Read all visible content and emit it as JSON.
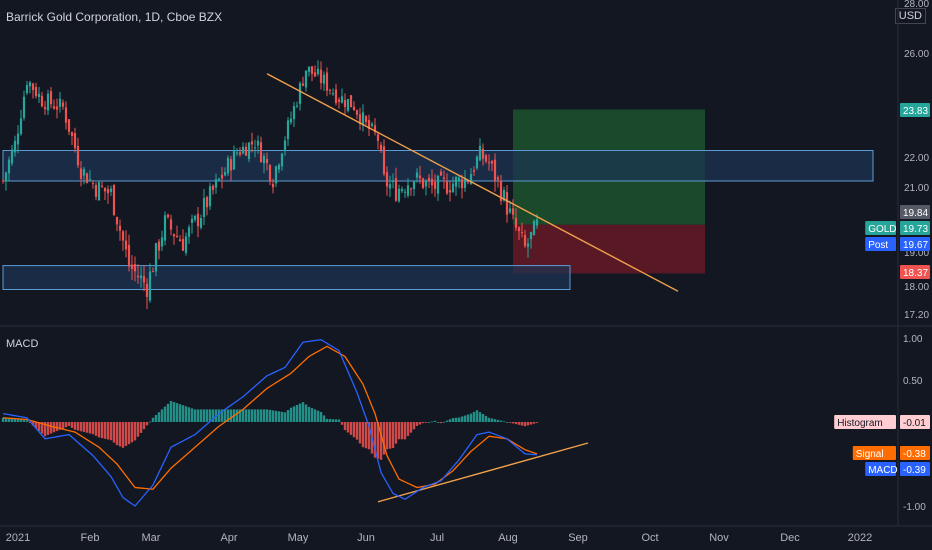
{
  "header": {
    "title": "Barrick Gold Corporation, 1D, Cboe BZX",
    "currency": "USD"
  },
  "colors": {
    "background": "#131722",
    "up": "#26a69a",
    "down": "#ef5350",
    "trendline": "#f0a04b",
    "zone_fill": "#1c3554",
    "zone_stroke": "#5b9bd5",
    "target_zone": "#1e5b2f",
    "stop_zone": "#6b1a26",
    "macd_line": "#2962ff",
    "signal_line": "#ff6d00",
    "hist_up": "#26a69a",
    "hist_down": "#ef5350"
  },
  "price_axis": {
    "ticks": [
      "28.00",
      "26.00",
      "22.00",
      "21.00",
      "19.00",
      "18.00",
      "17.20"
    ],
    "labels": [
      {
        "text": "23.83",
        "color": "#26a69a",
        "value": 23.83
      },
      {
        "text": "19.84",
        "color": "#555a66",
        "value": 19.84
      },
      {
        "name": "GOLD",
        "text": "19.73",
        "color": "#26a69a",
        "value": 19.73
      },
      {
        "name": "Post",
        "text": "19.67",
        "color": "#2962ff",
        "value": 19.67
      },
      {
        "text": "18.37",
        "color": "#ef5350",
        "value": 18.37
      }
    ]
  },
  "macd_panel": {
    "label": "MACD",
    "ticks": [
      "1.00",
      "0.50",
      "-1.00"
    ],
    "labels": [
      {
        "name": "Histogram",
        "text": "-0.01",
        "color": "#ffcdd2",
        "value": -0.01
      },
      {
        "name": "Signal",
        "text": "-0.38",
        "color": "#ff6d00",
        "value": -0.38
      },
      {
        "name": "MACD",
        "text": "-0.39",
        "color": "#2962ff",
        "value": -0.39
      }
    ]
  },
  "time_axis": [
    "2021",
    "Feb",
    "Mar",
    "Apr",
    "May",
    "Jun",
    "Jul",
    "Aug",
    "Sep",
    "Oct",
    "Nov",
    "Dec",
    "2022"
  ],
  "chart_data": {
    "type": "candlestick",
    "title": "Barrick Gold Corporation, 1D, Cboe BZX",
    "x_start": "2021-01-04",
    "close_path": [
      [
        0,
        21.2
      ],
      [
        4,
        22.5
      ],
      [
        8,
        25.0
      ],
      [
        13,
        24.2
      ],
      [
        20,
        23.9
      ],
      [
        26,
        21.6
      ],
      [
        31,
        21.0
      ],
      [
        36,
        20.8
      ],
      [
        42,
        18.6
      ],
      [
        48,
        18.0
      ],
      [
        54,
        19.9
      ],
      [
        60,
        19.3
      ],
      [
        66,
        20.2
      ],
      [
        72,
        21.2
      ],
      [
        78,
        22.2
      ],
      [
        84,
        22.6
      ],
      [
        90,
        21.3
      ],
      [
        96,
        23.5
      ],
      [
        101,
        25.4
      ],
      [
        107,
        24.9
      ],
      [
        112,
        24.3
      ],
      [
        117,
        24.0
      ],
      [
        121,
        23.2
      ],
      [
        125,
        22.7
      ],
      [
        127,
        21.2
      ],
      [
        131,
        20.9
      ],
      [
        137,
        21.3
      ],
      [
        143,
        21.0
      ],
      [
        149,
        21.1
      ],
      [
        155,
        21.3
      ],
      [
        159,
        22.1
      ],
      [
        162,
        21.8
      ],
      [
        166,
        20.9
      ],
      [
        170,
        19.9
      ],
      [
        174,
        19.1
      ],
      [
        178,
        19.8
      ]
    ],
    "trendlines": [
      {
        "from": [
          88,
          25.2
        ],
        "to": [
          225,
          17.85
        ]
      },
      {
        "panel": "macd",
        "from": [
          125,
          -0.95
        ],
        "to": [
          195,
          -0.25
        ]
      }
    ],
    "zones": [
      {
        "from_x": 0,
        "to_x": 290,
        "low": 21.2,
        "high": 22.25
      },
      {
        "from_x": 0,
        "to_x": 189,
        "low": 17.9,
        "high": 18.6
      },
      {
        "from_x": 0,
        "to_x": 290,
        "low": 21.2,
        "high": 21.2,
        "line_only": true
      }
    ],
    "position": {
      "from_x": 170,
      "to_x": 234,
      "entry": 19.84,
      "target": 23.83,
      "stop": 18.37
    },
    "macd_path": [
      [
        0,
        0.1
      ],
      [
        8,
        0.05
      ],
      [
        14,
        -0.2
      ],
      [
        22,
        -0.15
      ],
      [
        30,
        -0.4
      ],
      [
        36,
        -0.65
      ],
      [
        40,
        -0.9
      ],
      [
        44,
        -1.0
      ],
      [
        50,
        -0.75
      ],
      [
        56,
        -0.3
      ],
      [
        64,
        -0.15
      ],
      [
        72,
        0.1
      ],
      [
        80,
        0.3
      ],
      [
        88,
        0.55
      ],
      [
        94,
        0.65
      ],
      [
        100,
        0.95
      ],
      [
        106,
        0.98
      ],
      [
        112,
        0.85
      ],
      [
        118,
        0.35
      ],
      [
        122,
        -0.05
      ],
      [
        126,
        -0.6
      ],
      [
        130,
        -0.85
      ],
      [
        134,
        -0.92
      ],
      [
        140,
        -0.78
      ],
      [
        146,
        -0.7
      ],
      [
        152,
        -0.45
      ],
      [
        158,
        -0.15
      ],
      [
        162,
        -0.12
      ],
      [
        168,
        -0.2
      ],
      [
        174,
        -0.38
      ],
      [
        178,
        -0.39
      ]
    ],
    "signal_path": [
      [
        0,
        0.05
      ],
      [
        8,
        0.03
      ],
      [
        16,
        -0.05
      ],
      [
        24,
        -0.12
      ],
      [
        32,
        -0.3
      ],
      [
        38,
        -0.5
      ],
      [
        44,
        -0.78
      ],
      [
        50,
        -0.8
      ],
      [
        56,
        -0.55
      ],
      [
        64,
        -0.3
      ],
      [
        72,
        -0.05
      ],
      [
        80,
        0.15
      ],
      [
        88,
        0.4
      ],
      [
        96,
        0.58
      ],
      [
        102,
        0.78
      ],
      [
        108,
        0.9
      ],
      [
        114,
        0.78
      ],
      [
        120,
        0.45
      ],
      [
        124,
        0.1
      ],
      [
        128,
        -0.4
      ],
      [
        132,
        -0.68
      ],
      [
        138,
        -0.78
      ],
      [
        144,
        -0.74
      ],
      [
        150,
        -0.58
      ],
      [
        156,
        -0.35
      ],
      [
        162,
        -0.17
      ],
      [
        168,
        -0.2
      ],
      [
        174,
        -0.33
      ],
      [
        178,
        -0.38
      ]
    ],
    "price_ylim": [
      17.0,
      28.2
    ],
    "macd_ylim": [
      -1.2,
      1.15
    ],
    "grid": false
  }
}
